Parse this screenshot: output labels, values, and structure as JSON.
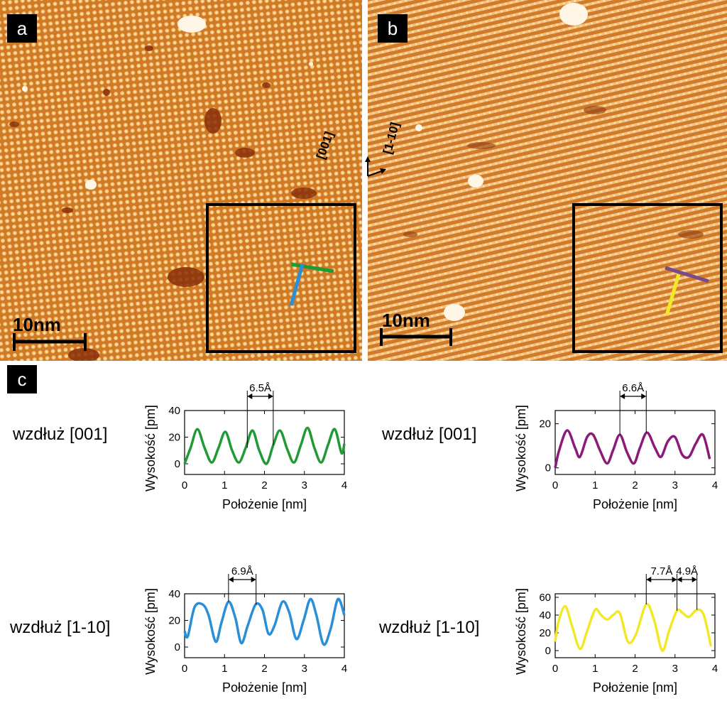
{
  "panel_a": {
    "label": "a",
    "scale": "10nm"
  },
  "panel_b": {
    "label": "b",
    "scale": "10nm"
  },
  "directions": {
    "vertical": "[001]",
    "horizontal": "[1-10]"
  },
  "panel_c": {
    "label": "c"
  },
  "colors": {
    "green": "#1f9a34",
    "blue": "#2a8fd6",
    "purple": "#8b1a7a",
    "yellow": "#f2e82a",
    "stm_base": "#d7852c",
    "stm_light": "#f7c97a",
    "stm_dark": "#7a2a06"
  },
  "chart_data": [
    {
      "type": "line",
      "side_label": "wzdłuż [001]",
      "xlabel": "Położenie [nm]",
      "ylabel": "Wysokość [pm]",
      "xlim": [
        0,
        4
      ],
      "ylim": [
        -8,
        40
      ],
      "xticks": [
        0,
        1,
        2,
        3,
        4
      ],
      "yticks": [
        0,
        20,
        40
      ],
      "color": "#1f9a34",
      "annotation": {
        "text": "6.5Å",
        "x1": 1.57,
        "x2": 2.22
      },
      "x": [
        0,
        0.15,
        0.32,
        0.5,
        0.68,
        0.85,
        1.02,
        1.19,
        1.36,
        1.53,
        1.7,
        1.87,
        2.05,
        2.22,
        2.39,
        2.57,
        2.74,
        2.91,
        3.08,
        3.25,
        3.42,
        3.59,
        3.76,
        3.93,
        4.0
      ],
      "y": [
        0,
        12,
        26,
        12,
        1,
        12,
        24,
        10,
        1,
        12,
        25,
        10,
        0,
        14,
        25,
        11,
        1,
        14,
        27,
        12,
        1,
        14,
        26,
        8,
        15
      ]
    },
    {
      "type": "line",
      "side_label": "wzdłuż [001]",
      "xlabel": "Położenie [nm]",
      "ylabel": "Wysokość [pm]",
      "xlim": [
        0,
        4
      ],
      "ylim": [
        -3,
        26
      ],
      "xticks": [
        0,
        1,
        2,
        3,
        4
      ],
      "yticks": [
        0,
        20
      ],
      "color": "#8b1a7a",
      "annotation": {
        "text": "6.6Å",
        "x1": 1.62,
        "x2": 2.28
      },
      "x": [
        0,
        0.1,
        0.3,
        0.5,
        0.62,
        0.8,
        0.95,
        1.12,
        1.3,
        1.45,
        1.62,
        1.8,
        1.97,
        2.12,
        2.3,
        2.5,
        2.65,
        2.82,
        3.0,
        3.18,
        3.35,
        3.52,
        3.7,
        3.87
      ],
      "y": [
        0,
        8,
        17,
        9,
        5,
        14,
        15,
        8,
        2,
        8,
        15,
        7,
        2,
        9,
        16,
        9,
        5,
        12,
        14,
        6,
        5,
        11,
        15,
        4
      ]
    },
    {
      "type": "line",
      "side_label": "wzdłuż [1-10]",
      "xlabel": "Położenie [nm]",
      "ylabel": "Wysokość [pm]",
      "xlim": [
        0,
        4
      ],
      "ylim": [
        -8,
        40
      ],
      "xticks": [
        0,
        1,
        2,
        3,
        4
      ],
      "yticks": [
        0,
        20,
        40
      ],
      "color": "#2a8fd6",
      "annotation": {
        "text": "6.9Å",
        "x1": 1.1,
        "x2": 1.79
      },
      "x": [
        0,
        0.08,
        0.25,
        0.45,
        0.6,
        0.78,
        0.92,
        1.1,
        1.27,
        1.42,
        1.58,
        1.78,
        1.95,
        2.1,
        2.25,
        2.45,
        2.62,
        2.8,
        2.98,
        3.15,
        3.3,
        3.48,
        3.66,
        3.84,
        4.0
      ],
      "y": [
        12,
        8,
        30,
        32,
        24,
        4,
        18,
        34,
        22,
        3,
        16,
        32,
        28,
        10,
        16,
        34,
        26,
        6,
        20,
        36,
        24,
        2,
        14,
        36,
        24
      ]
    },
    {
      "type": "line",
      "side_label": "wzdłuż [1-10]",
      "xlabel": "Położenie [nm]",
      "ylabel": "Wysokość [pm]",
      "xlim": [
        0,
        4
      ],
      "ylim": [
        -8,
        64
      ],
      "xticks": [
        0,
        1,
        2,
        3,
        4
      ],
      "yticks": [
        0,
        20,
        40,
        60
      ],
      "color": "#f2e82a",
      "annotation": {
        "text": "7.7Å",
        "x1": 2.28,
        "x2": 3.05,
        "text2": "4.9Å",
        "x3": 3.55
      },
      "x": [
        0,
        0.08,
        0.25,
        0.42,
        0.62,
        0.8,
        1.0,
        1.15,
        1.3,
        1.45,
        1.62,
        1.82,
        2.02,
        2.28,
        2.48,
        2.68,
        2.85,
        3.05,
        3.2,
        3.35,
        3.55,
        3.72,
        3.9
      ],
      "y": [
        10,
        32,
        50,
        28,
        2,
        22,
        46,
        40,
        35,
        40,
        42,
        10,
        18,
        52,
        34,
        0,
        22,
        45,
        42,
        38,
        46,
        40,
        5
      ]
    }
  ]
}
